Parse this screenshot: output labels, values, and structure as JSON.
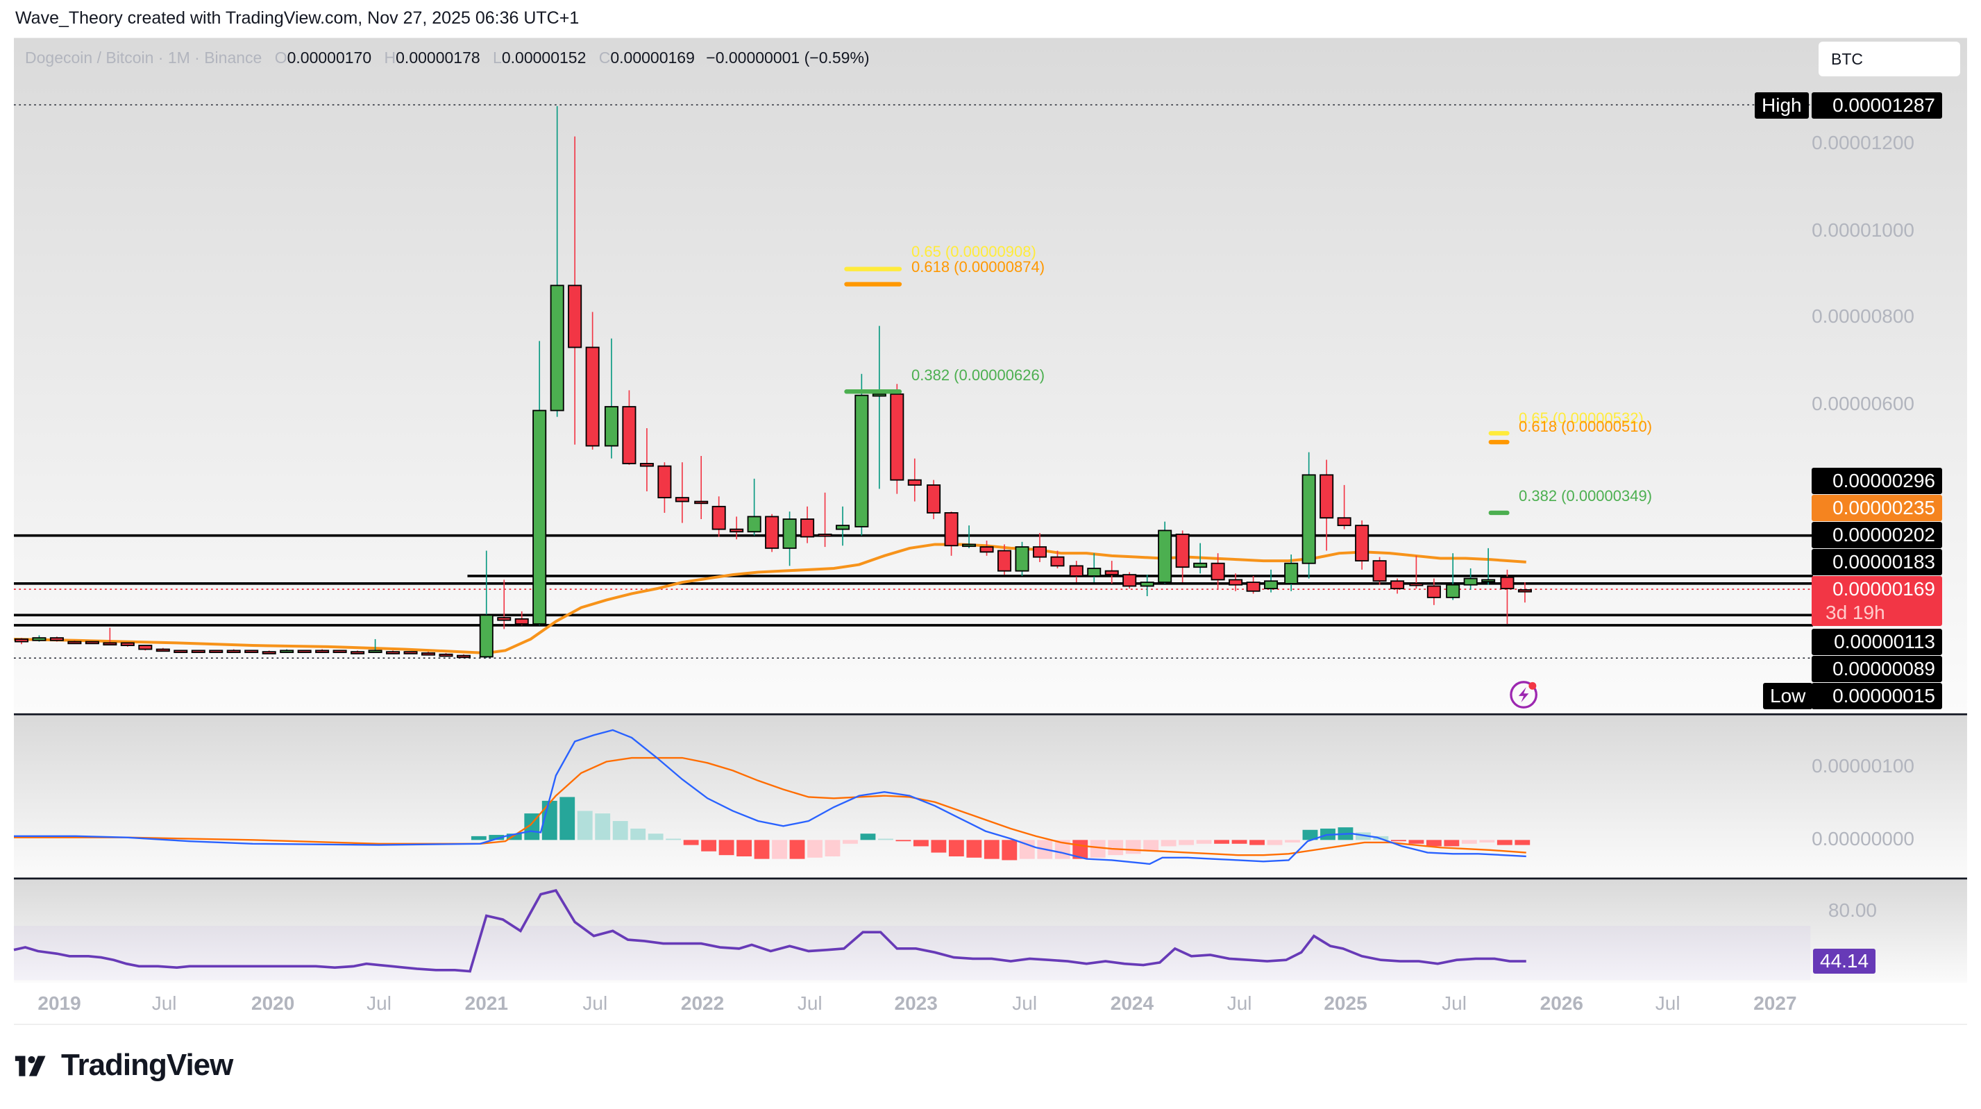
{
  "header": {
    "attribution": "Wave_Theory created with TradingView.com, Nov 27, 2025 06:36 UTC+1"
  },
  "legend": {
    "symbol": "Dogecoin / Bitcoin · 1M · Binance",
    "open_key": "O",
    "open": "0.00000170",
    "high_key": "H",
    "high": "0.00000178",
    "low_key": "L",
    "low": "0.00000152",
    "close_key": "C",
    "close": "0.00000169",
    "change": "−0.00000001 (−0.59%)"
  },
  "currency_box": "BTC",
  "price_axis": {
    "ticks": [
      "0.00001200",
      "0.00001000",
      "0.00000800",
      "0.00000600"
    ],
    "high_label": "High",
    "high_value": "0.00001287",
    "low_label": "Low",
    "low_value": "0.00000015",
    "levels": [
      "0.00000296",
      "0.00000235",
      "0.00000202",
      "0.00000183",
      "0.00000169",
      "0.00000113",
      "0.00000089"
    ],
    "current_price": "0.00000169",
    "countdown": "3d 19h",
    "ma_value": "0.00000235"
  },
  "fib_levels": {
    "first": {
      "l065": "0.65 (0.00000908)",
      "l0618": "0.618 (0.00000874)",
      "l0382": "0.382 (0.00000626)"
    },
    "second": {
      "l065": "0.65 (0.00000532)",
      "l0618": "0.618 (0.00000510)",
      "l0382": "0.382 (0.00000349)"
    }
  },
  "macd_axis": {
    "ticks": [
      "0.00000100",
      "0.00000000"
    ]
  },
  "rsi_axis": {
    "tick": "80.00",
    "value": "44.14"
  },
  "time_axis": {
    "labels": [
      {
        "t": "2019",
        "year": true
      },
      {
        "t": "Jul",
        "year": false
      },
      {
        "t": "2020",
        "year": true
      },
      {
        "t": "Jul",
        "year": false
      },
      {
        "t": "2021",
        "year": true
      },
      {
        "t": "Jul",
        "year": false
      },
      {
        "t": "2022",
        "year": true
      },
      {
        "t": "Jul",
        "year": false
      },
      {
        "t": "2023",
        "year": true
      },
      {
        "t": "Jul",
        "year": false
      },
      {
        "t": "2024",
        "year": true
      },
      {
        "t": "Jul",
        "year": false
      },
      {
        "t": "2025",
        "year": true
      },
      {
        "t": "Jul",
        "year": false
      },
      {
        "t": "2026",
        "year": true
      },
      {
        "t": "Jul",
        "year": false
      },
      {
        "t": "2027",
        "year": true
      }
    ]
  },
  "colors": {
    "up": "#4caf50",
    "down": "#f23645",
    "ma": "#f7931a",
    "macd": "#2962ff",
    "signal": "#ff6d00",
    "rsi": "#673ab7",
    "fib065": "#ffeb3b",
    "fib0618": "#ff9800",
    "fib0382": "#4caf50"
  },
  "brand": {
    "name": "TradingView"
  },
  "chart_data": {
    "type": "candlestick",
    "title": "Dogecoin / Bitcoin · 1M · Binance",
    "ylabel": "BTC",
    "ylim": [
      1.5e-07,
      1.287e-05
    ],
    "yticks": [
      6e-06,
      8e-06,
      1e-05,
      1.2e-05
    ],
    "horizontal_levels": [
      2.96e-06,
      2.02e-06,
      1.83e-06,
      1.13e-06,
      8.9e-07
    ],
    "moving_average_last": 2.35e-06,
    "last": {
      "open": 1.7e-06,
      "high": 1.78e-06,
      "low": 1.52e-06,
      "close": 1.69e-06
    },
    "all_time_high": 1.287e-05,
    "all_time_low": 1.5e-07,
    "fibonacci": [
      {
        "level": 0.65,
        "price": 9.08e-06
      },
      {
        "level": 0.618,
        "price": 8.74e-06
      },
      {
        "level": 0.382,
        "price": 6.26e-06
      },
      {
        "level": 0.65,
        "price": 5.32e-06
      },
      {
        "level": 0.618,
        "price": 5.1e-06
      },
      {
        "level": 0.382,
        "price": 3.49e-06
      }
    ],
    "indicators": {
      "macd": {
        "yticks": [
          0,
          1e-06
        ]
      },
      "rsi": {
        "last": 44.14,
        "ytick": 80
      }
    },
    "x_labels": [
      "2019",
      "Jul",
      "2020",
      "Jul",
      "2021",
      "Jul",
      "2022",
      "Jul",
      "2023",
      "Jul",
      "2024",
      "Jul",
      "2025",
      "Jul",
      "2026",
      "Jul",
      "2027"
    ]
  }
}
